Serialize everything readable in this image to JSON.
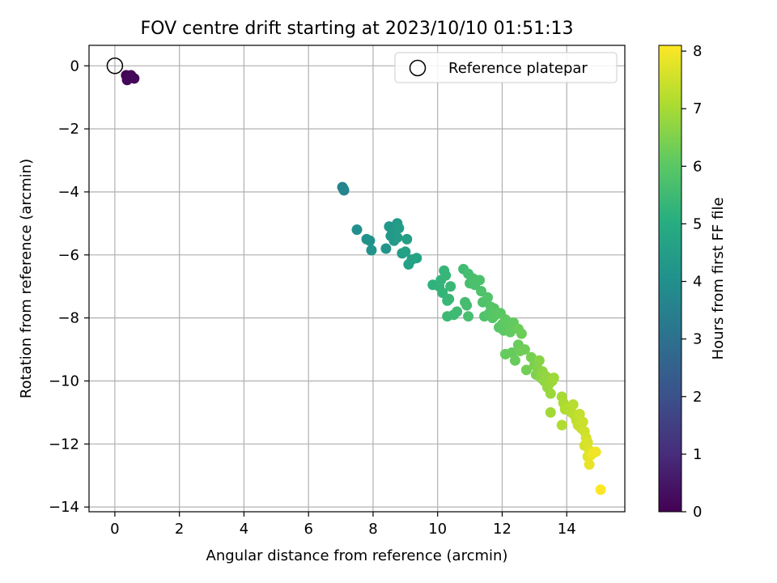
{
  "chart_data": {
    "type": "scatter",
    "title": "FOV centre drift starting at 2023/10/10 01:51:13",
    "xlabel": "Angular distance from reference (arcmin)",
    "ylabel": "Rotation from reference (arcmin)",
    "xlim": [
      -0.8,
      15.8
    ],
    "ylim": [
      -14.15,
      0.65
    ],
    "xticks": [
      0,
      2,
      4,
      6,
      8,
      10,
      12,
      14
    ],
    "yticks": [
      0,
      -2,
      -4,
      -6,
      -8,
      -10,
      -12,
      -14
    ],
    "grid": true,
    "legend": {
      "placement": "top-right",
      "entries": [
        "Reference platepar"
      ]
    },
    "reference_point": {
      "x": 0,
      "y": 0,
      "label": "Reference platepar"
    },
    "colorbar": {
      "label": "Hours from first FF file",
      "min": 0,
      "max": 8.1,
      "ticks": [
        0,
        1,
        2,
        3,
        4,
        5,
        6,
        7,
        8
      ],
      "colormap": "viridis"
    },
    "points": [
      {
        "x": 0.35,
        "y": -0.3,
        "h": 0.0
      },
      {
        "x": 0.42,
        "y": -0.35,
        "h": 0.05
      },
      {
        "x": 0.5,
        "y": -0.3,
        "h": 0.08
      },
      {
        "x": 0.38,
        "y": -0.45,
        "h": 0.1
      },
      {
        "x": 0.6,
        "y": -0.4,
        "h": 0.12
      },
      {
        "x": 0.45,
        "y": -0.38,
        "h": 0.15
      },
      {
        "x": 7.05,
        "y": -3.85,
        "h": 3.6
      },
      {
        "x": 7.1,
        "y": -3.95,
        "h": 3.62
      },
      {
        "x": 7.08,
        "y": -3.9,
        "h": 3.65
      },
      {
        "x": 7.5,
        "y": -5.2,
        "h": 4.0
      },
      {
        "x": 7.8,
        "y": -5.5,
        "h": 4.05
      },
      {
        "x": 7.9,
        "y": -5.55,
        "h": 4.1
      },
      {
        "x": 7.95,
        "y": -5.85,
        "h": 4.15
      },
      {
        "x": 8.4,
        "y": -5.8,
        "h": 4.2
      },
      {
        "x": 8.5,
        "y": -5.1,
        "h": 4.25
      },
      {
        "x": 8.55,
        "y": -5.4,
        "h": 4.3
      },
      {
        "x": 8.6,
        "y": -5.3,
        "h": 4.32
      },
      {
        "x": 8.65,
        "y": -5.55,
        "h": 4.35
      },
      {
        "x": 8.7,
        "y": -5.2,
        "h": 4.38
      },
      {
        "x": 8.75,
        "y": -5.0,
        "h": 4.4
      },
      {
        "x": 8.8,
        "y": -5.15,
        "h": 4.42
      },
      {
        "x": 8.75,
        "y": -5.45,
        "h": 4.44
      },
      {
        "x": 8.9,
        "y": -5.95,
        "h": 4.5
      },
      {
        "x": 9.05,
        "y": -5.5,
        "h": 4.55
      },
      {
        "x": 9.0,
        "y": -5.9,
        "h": 4.6
      },
      {
        "x": 9.1,
        "y": -6.3,
        "h": 4.62
      },
      {
        "x": 9.2,
        "y": -6.15,
        "h": 4.65
      },
      {
        "x": 9.35,
        "y": -6.1,
        "h": 4.7
      },
      {
        "x": 9.85,
        "y": -6.95,
        "h": 5.2
      },
      {
        "x": 10.05,
        "y": -7.0,
        "h": 5.25
      },
      {
        "x": 10.1,
        "y": -6.8,
        "h": 5.28
      },
      {
        "x": 10.15,
        "y": -7.2,
        "h": 5.3
      },
      {
        "x": 10.2,
        "y": -6.5,
        "h": 5.32
      },
      {
        "x": 10.25,
        "y": -6.65,
        "h": 5.35
      },
      {
        "x": 10.3,
        "y": -7.45,
        "h": 5.38
      },
      {
        "x": 10.35,
        "y": -7.4,
        "h": 5.4
      },
      {
        "x": 10.4,
        "y": -7.0,
        "h": 5.42
      },
      {
        "x": 10.3,
        "y": -7.95,
        "h": 5.45
      },
      {
        "x": 10.5,
        "y": -7.9,
        "h": 5.48
      },
      {
        "x": 10.6,
        "y": -7.8,
        "h": 5.5
      },
      {
        "x": 10.8,
        "y": -6.45,
        "h": 5.55
      },
      {
        "x": 10.9,
        "y": -7.6,
        "h": 5.58
      },
      {
        "x": 10.85,
        "y": -7.5,
        "h": 5.6
      },
      {
        "x": 10.95,
        "y": -6.6,
        "h": 5.62
      },
      {
        "x": 11.0,
        "y": -6.9,
        "h": 5.65
      },
      {
        "x": 10.95,
        "y": -7.95,
        "h": 5.68
      },
      {
        "x": 11.1,
        "y": -6.75,
        "h": 5.7
      },
      {
        "x": 11.15,
        "y": -6.95,
        "h": 5.72
      },
      {
        "x": 11.3,
        "y": -6.8,
        "h": 5.75
      },
      {
        "x": 11.35,
        "y": -7.15,
        "h": 5.78
      },
      {
        "x": 11.4,
        "y": -7.5,
        "h": 5.8
      },
      {
        "x": 11.45,
        "y": -7.95,
        "h": 5.82
      },
      {
        "x": 11.55,
        "y": -7.35,
        "h": 5.85
      },
      {
        "x": 11.6,
        "y": -7.85,
        "h": 5.88
      },
      {
        "x": 11.65,
        "y": -7.65,
        "h": 5.9
      },
      {
        "x": 11.7,
        "y": -8.0,
        "h": 5.92
      },
      {
        "x": 11.75,
        "y": -7.7,
        "h": 5.94
      },
      {
        "x": 11.8,
        "y": -7.9,
        "h": 5.96
      },
      {
        "x": 11.9,
        "y": -8.3,
        "h": 5.98
      },
      {
        "x": 11.95,
        "y": -7.85,
        "h": 6.0
      },
      {
        "x": 12.0,
        "y": -8.2,
        "h": 6.02
      },
      {
        "x": 12.05,
        "y": -8.4,
        "h": 6.05
      },
      {
        "x": 12.1,
        "y": -8.05,
        "h": 6.08
      },
      {
        "x": 12.2,
        "y": -8.25,
        "h": 6.1
      },
      {
        "x": 12.25,
        "y": -8.45,
        "h": 6.12
      },
      {
        "x": 12.35,
        "y": -8.15,
        "h": 6.14
      },
      {
        "x": 12.1,
        "y": -9.15,
        "h": 6.16
      },
      {
        "x": 12.3,
        "y": -9.1,
        "h": 6.18
      },
      {
        "x": 12.4,
        "y": -9.35,
        "h": 6.2
      },
      {
        "x": 12.5,
        "y": -8.85,
        "h": 6.22
      },
      {
        "x": 12.5,
        "y": -8.35,
        "h": 6.24
      },
      {
        "x": 12.6,
        "y": -8.5,
        "h": 6.26
      },
      {
        "x": 12.55,
        "y": -9.05,
        "h": 6.28
      },
      {
        "x": 12.7,
        "y": -9.0,
        "h": 6.3
      },
      {
        "x": 12.75,
        "y": -9.65,
        "h": 6.35
      },
      {
        "x": 12.9,
        "y": -9.25,
        "h": 6.4
      },
      {
        "x": 13.0,
        "y": -9.5,
        "h": 6.45
      },
      {
        "x": 13.05,
        "y": -9.8,
        "h": 6.5
      },
      {
        "x": 13.1,
        "y": -9.6,
        "h": 6.55
      },
      {
        "x": 13.15,
        "y": -9.35,
        "h": 6.6
      },
      {
        "x": 13.2,
        "y": -9.9,
        "h": 6.65
      },
      {
        "x": 13.25,
        "y": -9.7,
        "h": 6.7
      },
      {
        "x": 13.3,
        "y": -10.0,
        "h": 6.72
      },
      {
        "x": 13.35,
        "y": -9.85,
        "h": 6.75
      },
      {
        "x": 13.4,
        "y": -10.2,
        "h": 6.78
      },
      {
        "x": 13.45,
        "y": -10.1,
        "h": 6.8
      },
      {
        "x": 13.5,
        "y": -10.4,
        "h": 6.85
      },
      {
        "x": 13.55,
        "y": -10.0,
        "h": 6.88
      },
      {
        "x": 13.6,
        "y": -9.9,
        "h": 6.9
      },
      {
        "x": 13.5,
        "y": -11.0,
        "h": 6.95
      },
      {
        "x": 13.85,
        "y": -10.5,
        "h": 7.0
      },
      {
        "x": 13.9,
        "y": -10.7,
        "h": 7.05
      },
      {
        "x": 13.95,
        "y": -10.9,
        "h": 7.1
      },
      {
        "x": 13.85,
        "y": -11.4,
        "h": 7.12
      },
      {
        "x": 14.05,
        "y": -10.85,
        "h": 7.15
      },
      {
        "x": 14.15,
        "y": -11.0,
        "h": 7.2
      },
      {
        "x": 14.2,
        "y": -10.75,
        "h": 7.22
      },
      {
        "x": 14.25,
        "y": -11.1,
        "h": 7.25
      },
      {
        "x": 14.3,
        "y": -11.25,
        "h": 7.3
      },
      {
        "x": 14.35,
        "y": -11.4,
        "h": 7.35
      },
      {
        "x": 14.4,
        "y": -11.05,
        "h": 7.38
      },
      {
        "x": 14.45,
        "y": -11.5,
        "h": 7.4
      },
      {
        "x": 14.5,
        "y": -11.3,
        "h": 7.45
      },
      {
        "x": 14.55,
        "y": -11.6,
        "h": 7.5
      },
      {
        "x": 14.6,
        "y": -11.8,
        "h": 7.55
      },
      {
        "x": 14.55,
        "y": -12.05,
        "h": 7.6
      },
      {
        "x": 14.65,
        "y": -11.95,
        "h": 7.65
      },
      {
        "x": 14.7,
        "y": -12.2,
        "h": 7.7
      },
      {
        "x": 14.65,
        "y": -12.4,
        "h": 7.75
      },
      {
        "x": 14.75,
        "y": -12.35,
        "h": 7.8
      },
      {
        "x": 14.7,
        "y": -12.65,
        "h": 7.85
      },
      {
        "x": 14.8,
        "y": -12.3,
        "h": 7.9
      },
      {
        "x": 14.9,
        "y": -12.25,
        "h": 7.95
      },
      {
        "x": 15.05,
        "y": -13.45,
        "h": 8.1
      }
    ]
  }
}
